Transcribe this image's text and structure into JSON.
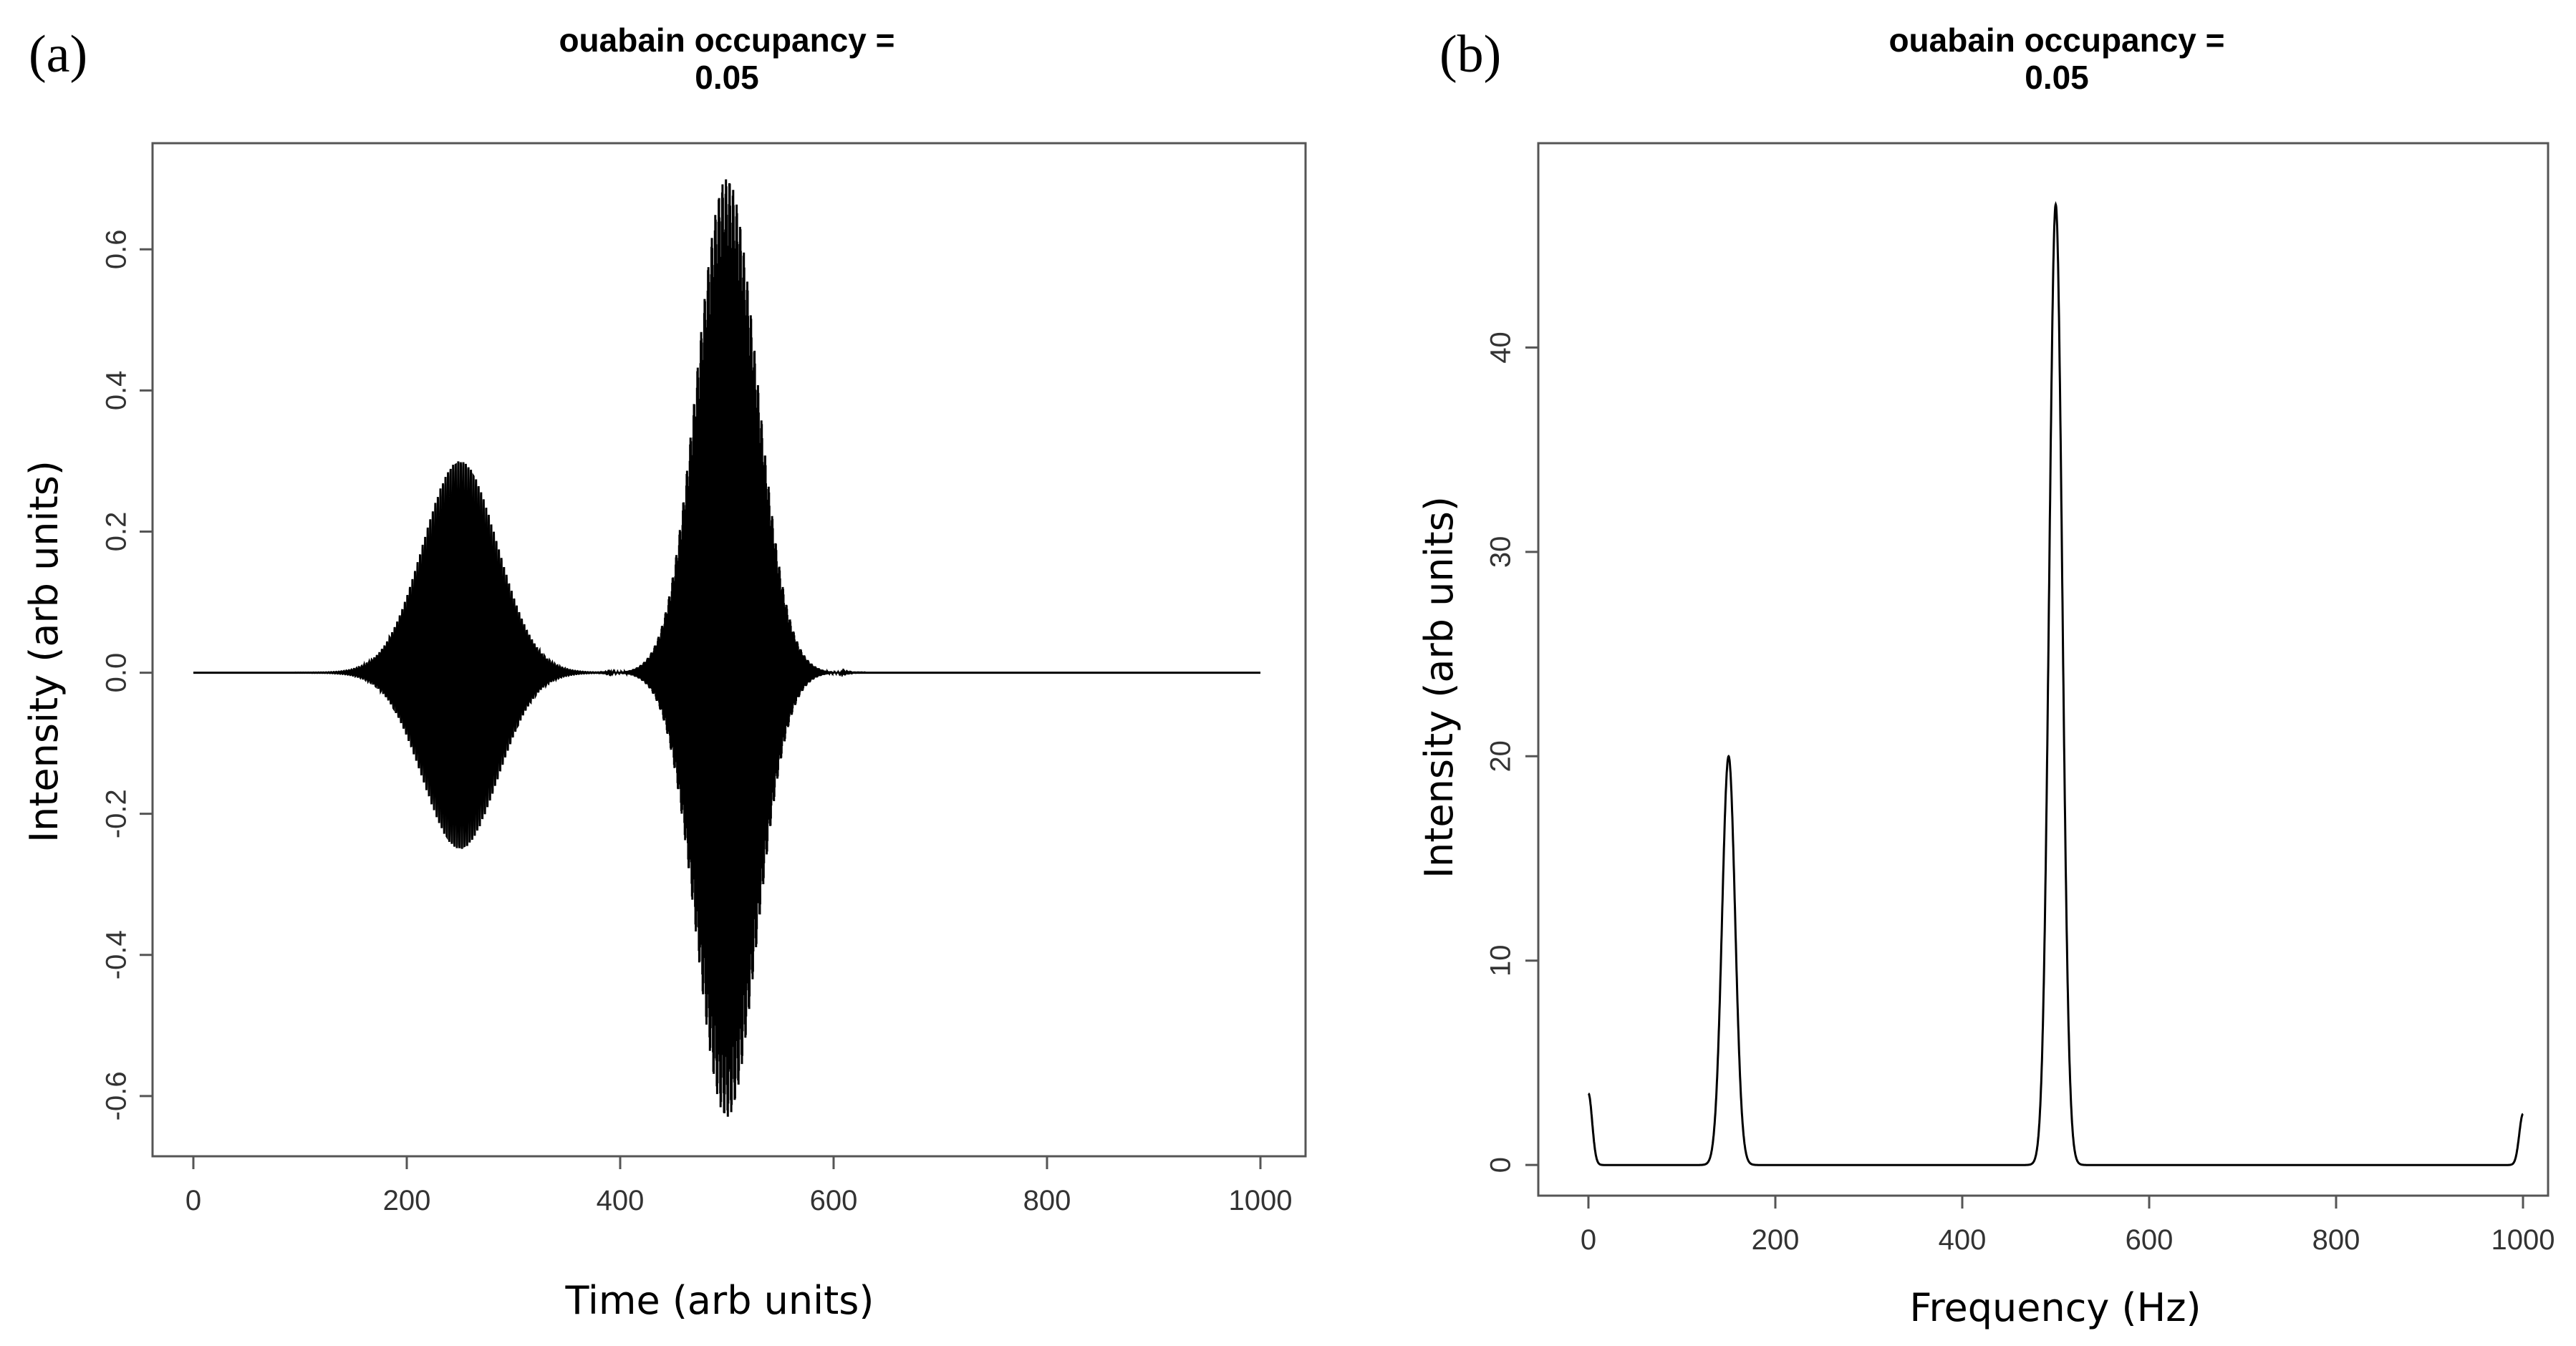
{
  "chart_data": [
    {
      "panel": "(a)",
      "type": "line",
      "title": "ouabain occupancy =",
      "subtitle": "0.05",
      "xlabel": "Time (arb units)",
      "ylabel": "Intensity (arb units)",
      "xlim": [
        0,
        1000
      ],
      "ylim": [
        -0.66,
        0.72
      ],
      "x_ticks": [
        0,
        200,
        400,
        600,
        800,
        1000
      ],
      "y_ticks": [
        -0.6,
        -0.4,
        -0.2,
        0.0,
        0.2,
        0.4,
        0.6
      ],
      "y_tick_labels": [
        "-0.6",
        "-0.4",
        "-0.2",
        "0.0",
        "0.2",
        "0.4",
        "0.6"
      ],
      "grid": false,
      "series": [
        {
          "wave_packets": [
            {
              "center": 250,
              "width": 35,
              "amplitude_max": 0.3,
              "amplitude_min": -0.25,
              "oscillation": "visible",
              "color": "#000000"
            },
            {
              "center": 500,
              "width": 28,
              "amplitude_max": 0.7,
              "amplitude_min": -0.63,
              "oscillation": "dense",
              "color": "#000000"
            }
          ]
        }
      ]
    },
    {
      "panel": "(b)",
      "type": "line",
      "title": "ouabain occupancy =",
      "subtitle": "0.05",
      "xlabel": "Frequency (Hz)",
      "ylabel": "Intensity (arb units)",
      "xlim": [
        0,
        1000
      ],
      "ylim": [
        -1.5,
        50
      ],
      "x_ticks": [
        0,
        200,
        400,
        600,
        800,
        1000
      ],
      "y_ticks": [
        0,
        10,
        20,
        30,
        40
      ],
      "grid": false,
      "series": [
        {
          "peaks": [
            {
              "x": 0,
              "y": 3.5
            },
            {
              "x": 150,
              "y": 20
            },
            {
              "x": 500,
              "y": 47
            },
            {
              "x": 1000,
              "y": 2.5
            }
          ],
          "color": "#000000"
        }
      ]
    }
  ]
}
